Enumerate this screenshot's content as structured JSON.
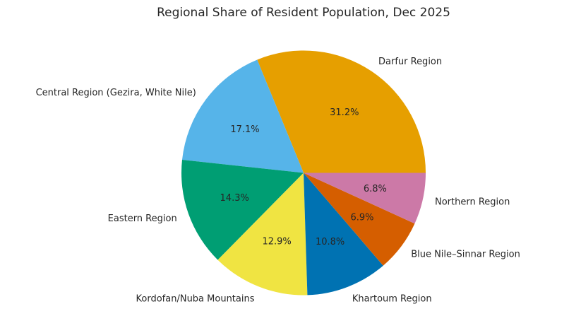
{
  "chart_data": {
    "type": "pie",
    "title": "Regional Share of Resident Population, Dec 2025",
    "background_color": "#FFFFFF",
    "text_color": "#262626",
    "legend": "none",
    "start_angle": 0,
    "direction": "counterclockwise",
    "label_distance": 1.1,
    "pct_distance": 0.6,
    "slices": [
      {
        "label": "Darfur Region",
        "value": 31.2,
        "pct_label": "31.2%",
        "color": "#E69F00"
      },
      {
        "label": "Central Region (Gezira, White Nile)",
        "value": 17.1,
        "pct_label": "17.1%",
        "color": "#56B4E9"
      },
      {
        "label": "Eastern Region",
        "value": 14.3,
        "pct_label": "14.3%",
        "color": "#009E73"
      },
      {
        "label": "Kordofan/Nuba Mountains",
        "value": 12.9,
        "pct_label": "12.9%",
        "color": "#F0E442"
      },
      {
        "label": "Khartoum Region",
        "value": 10.8,
        "pct_label": "10.8%",
        "color": "#0072B2"
      },
      {
        "label": "Blue Nile–Sinnar Region",
        "value": 6.9,
        "pct_label": "6.9%",
        "color": "#D55E00"
      },
      {
        "label": "Northern Region",
        "value": 6.8,
        "pct_label": "6.8%",
        "color": "#CC79A7"
      }
    ]
  }
}
